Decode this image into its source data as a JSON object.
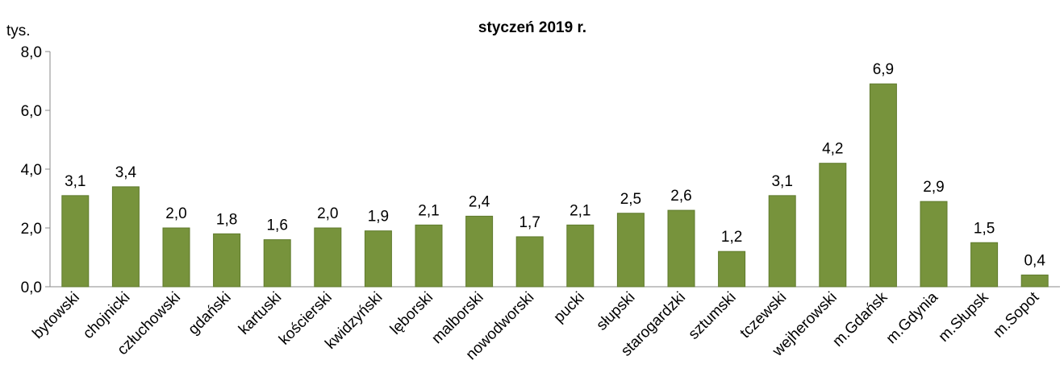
{
  "chart_data": {
    "type": "bar",
    "title": "styczeń 2019 r.",
    "y_axis_label": "tys.",
    "categories": [
      "bytowski",
      "chojnicki",
      "człuchowski",
      "gdański",
      "kartuski",
      "kościerski",
      "kwidzyński",
      "lęborski",
      "malborski",
      "nowodworski",
      "pucki",
      "słupski",
      "starogardzki",
      "sztumski",
      "tczewski",
      "wejherowski",
      "m.Gdańsk",
      "m.Gdynia",
      "m.Słupsk",
      "m.Sopot"
    ],
    "values": [
      3.1,
      3.4,
      2.0,
      1.8,
      1.6,
      2.0,
      1.9,
      2.1,
      2.4,
      1.7,
      2.1,
      2.5,
      2.6,
      1.2,
      3.1,
      4.2,
      6.9,
      2.9,
      1.5,
      0.4
    ],
    "value_labels": [
      "3,1",
      "3,4",
      "2,0",
      "1,8",
      "1,6",
      "2,0",
      "1,9",
      "2,1",
      "2,4",
      "1,7",
      "2,1",
      "2,5",
      "2,6",
      "1,2",
      "3,1",
      "4,2",
      "6,9",
      "2,9",
      "1,5",
      "0,4"
    ],
    "color": "#77933c",
    "ylim": [
      0,
      8
    ],
    "yticks": [
      {
        "value": 0,
        "label": "0,0"
      },
      {
        "value": 2,
        "label": "2,0"
      },
      {
        "value": 4,
        "label": "4,0"
      },
      {
        "value": 6,
        "label": "6,0"
      },
      {
        "value": 8,
        "label": "8,0"
      }
    ],
    "grid": false
  }
}
